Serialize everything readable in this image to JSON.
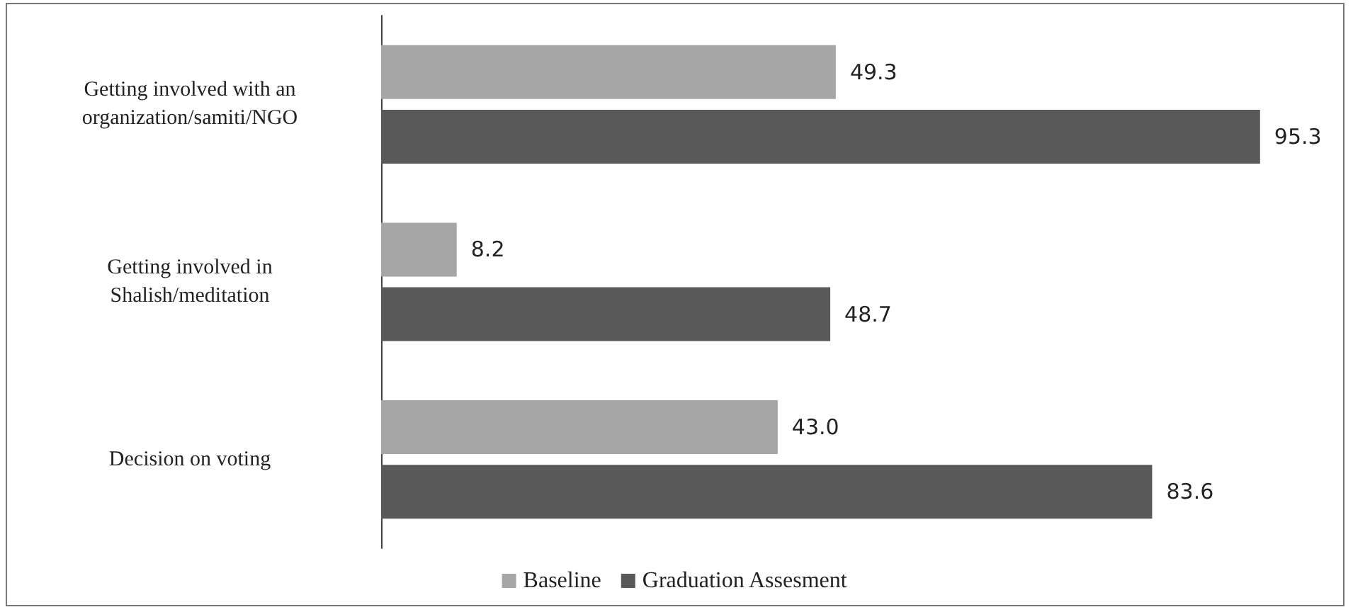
{
  "chart_data": {
    "type": "bar",
    "orientation": "horizontal",
    "categories": [
      "Getting involved with an\norganization/samiti/NGO",
      "Getting involved in\nShalish/meditation",
      "Decision on voting"
    ],
    "series": [
      {
        "name": "Baseline",
        "color": "#a6a6a6",
        "values": [
          49.3,
          8.2,
          43.0
        ],
        "value_labels": [
          "49.3",
          "8.2",
          "43.0"
        ]
      },
      {
        "name": "Graduation Assesment",
        "color": "#595959",
        "values": [
          95.3,
          48.7,
          83.6
        ],
        "value_labels": [
          "95.3",
          "48.7",
          "83.6"
        ]
      }
    ],
    "legend": "bottom",
    "tick_labels": "y"
  }
}
